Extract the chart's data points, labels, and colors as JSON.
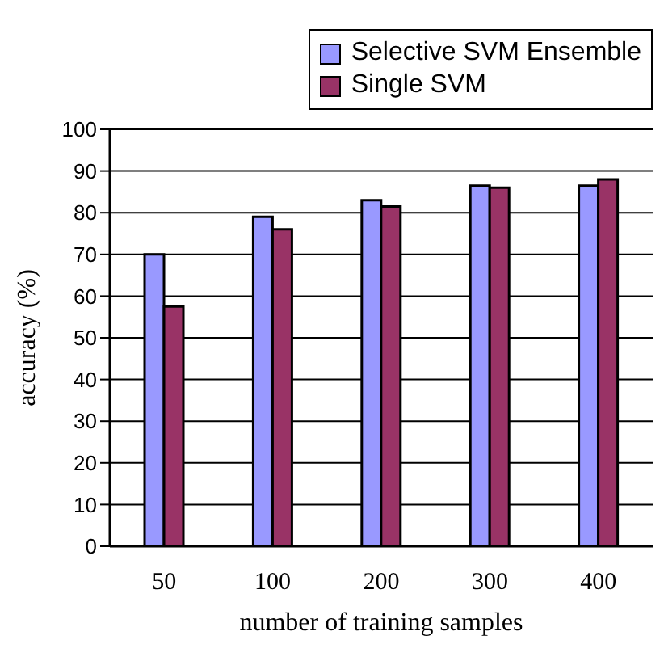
{
  "chart_data": {
    "type": "bar",
    "xlabel": "number of training samples",
    "ylabel": "accuracy (%)",
    "categories": [
      "50",
      "100",
      "200",
      "300",
      "400"
    ],
    "series": [
      {
        "name": "Selective SVM Ensemble",
        "color": "#9999ff",
        "values": [
          70,
          79,
          83,
          86.5,
          86.5
        ]
      },
      {
        "name": "Single SVM",
        "color": "#993366",
        "values": [
          57.5,
          76,
          81.5,
          86,
          88
        ]
      }
    ],
    "ylim": [
      0,
      100
    ],
    "yticks": [
      0,
      10,
      20,
      30,
      40,
      50,
      60,
      70,
      80,
      90,
      100
    ],
    "grid": "y",
    "legend": "top right"
  }
}
